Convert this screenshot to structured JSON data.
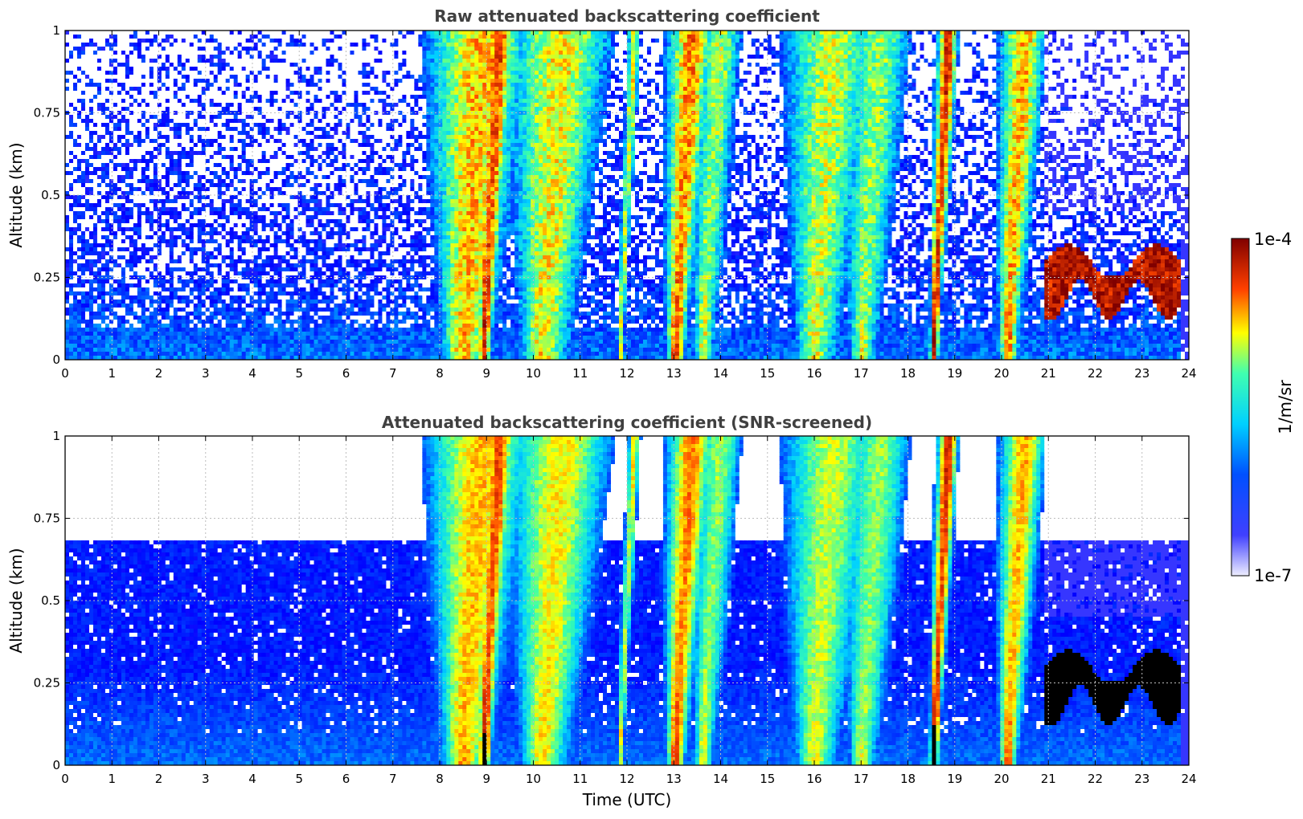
{
  "chart_data": [
    {
      "type": "heatmap",
      "title": "Raw attenuated backscattering coefficient",
      "xlabel": "",
      "ylabel": "Altitude (km)",
      "xlim": [
        0,
        24
      ],
      "ylim": [
        0,
        1
      ],
      "xticks": [
        "0",
        "1",
        "2",
        "3",
        "4",
        "5",
        "6",
        "7",
        "8",
        "9",
        "10",
        "11",
        "12",
        "13",
        "14",
        "15",
        "16",
        "17",
        "18",
        "19",
        "20",
        "21",
        "22",
        "23",
        "24"
      ],
      "yticks": [
        "0",
        "0.25",
        "0.5",
        "0.75",
        "1"
      ],
      "grid": true,
      "screened": false,
      "features": [
        {
          "kind": "boundary_layer",
          "x": [
            0,
            8
          ],
          "top": 0.25
        },
        {
          "kind": "thick_cloud",
          "x": [
            7.6,
            9.5
          ],
          "peak": 9.0
        },
        {
          "kind": "thick_cloud",
          "x": [
            9.5,
            11.3
          ],
          "peak": 10.5
        },
        {
          "kind": "narrow_cloud",
          "x": [
            11.8,
            12.2
          ],
          "peak": 12.0
        },
        {
          "kind": "thick_cloud",
          "x": [
            12.9,
            13.9
          ],
          "peak": 13.2
        },
        {
          "kind": "thick_cloud",
          "x": [
            15.6,
            18.0
          ],
          "peak": 16.6
        },
        {
          "kind": "thick_cloud",
          "x": [
            18.4,
            19.2
          ],
          "peak": 18.7
        },
        {
          "kind": "thick_cloud",
          "x": [
            19.6,
            20.7
          ],
          "peak": 20.3
        },
        {
          "kind": "stratocumulus",
          "x": [
            20.8,
            23.8
          ],
          "base": 0.12,
          "top": 0.42
        }
      ]
    },
    {
      "type": "heatmap",
      "title": "Attenuated backscattering coefficient (SNR-screened)",
      "xlabel": "Time (UTC)",
      "ylabel": "Altitude (km)",
      "xlim": [
        0,
        24
      ],
      "ylim": [
        0,
        1
      ],
      "xticks": [
        "0",
        "1",
        "2",
        "3",
        "4",
        "5",
        "6",
        "7",
        "8",
        "9",
        "10",
        "11",
        "12",
        "13",
        "14",
        "15",
        "16",
        "17",
        "18",
        "19",
        "20",
        "21",
        "22",
        "23",
        "24"
      ],
      "yticks": [
        "0",
        "0.25",
        "0.5",
        "0.75",
        "1"
      ],
      "grid": true,
      "screened": true
    }
  ],
  "colorbar": {
    "label": "1/m/sr",
    "max_label": "1e-4",
    "min_label": "1e-7",
    "colormap": "jet",
    "colors": [
      "#eeeeff",
      "#0000ff",
      "#00ffff",
      "#ffff00",
      "#ff0000",
      "#800000"
    ]
  }
}
